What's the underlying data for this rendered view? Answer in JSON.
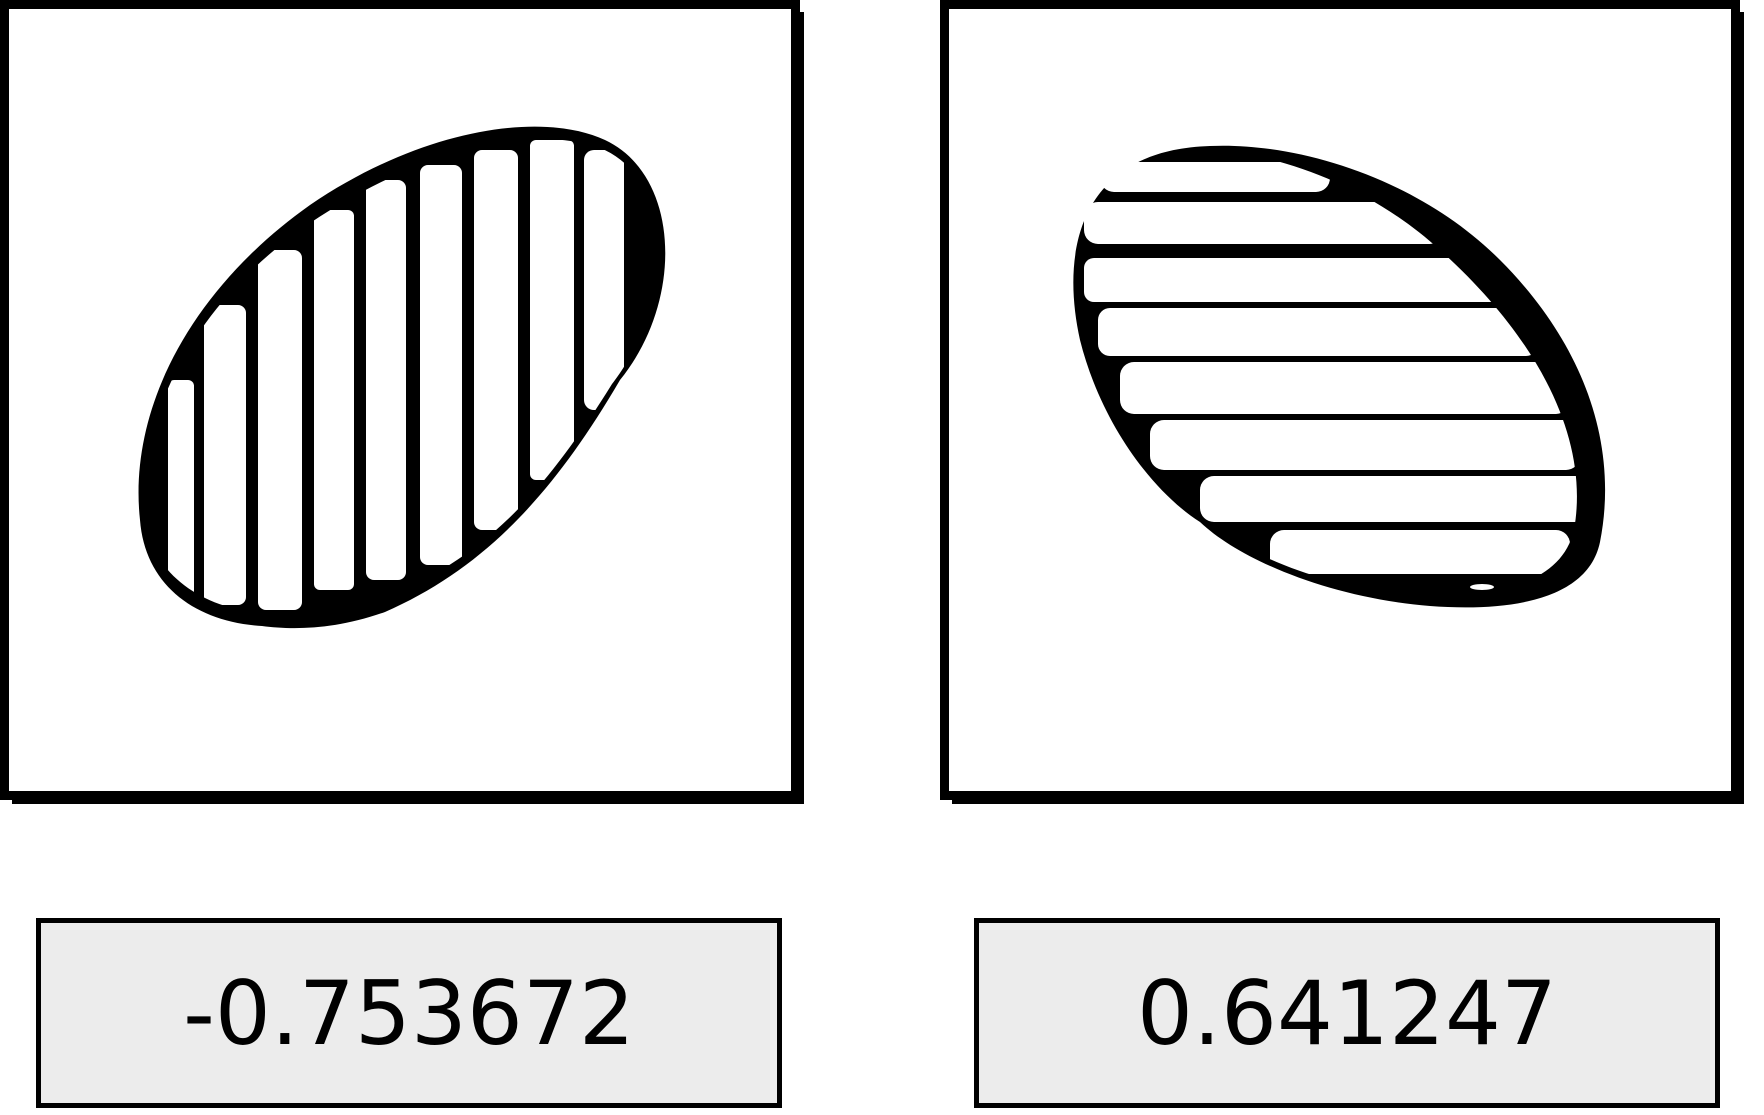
{
  "panels": [
    {
      "icon": "vertical-striped-oval-icon",
      "value": "-0.753672"
    },
    {
      "icon": "horizontal-striped-oval-icon",
      "value": "0.641247"
    }
  ],
  "colors": {
    "ink": "#000000",
    "box_fill": "#ececec",
    "background": "#ffffff"
  }
}
